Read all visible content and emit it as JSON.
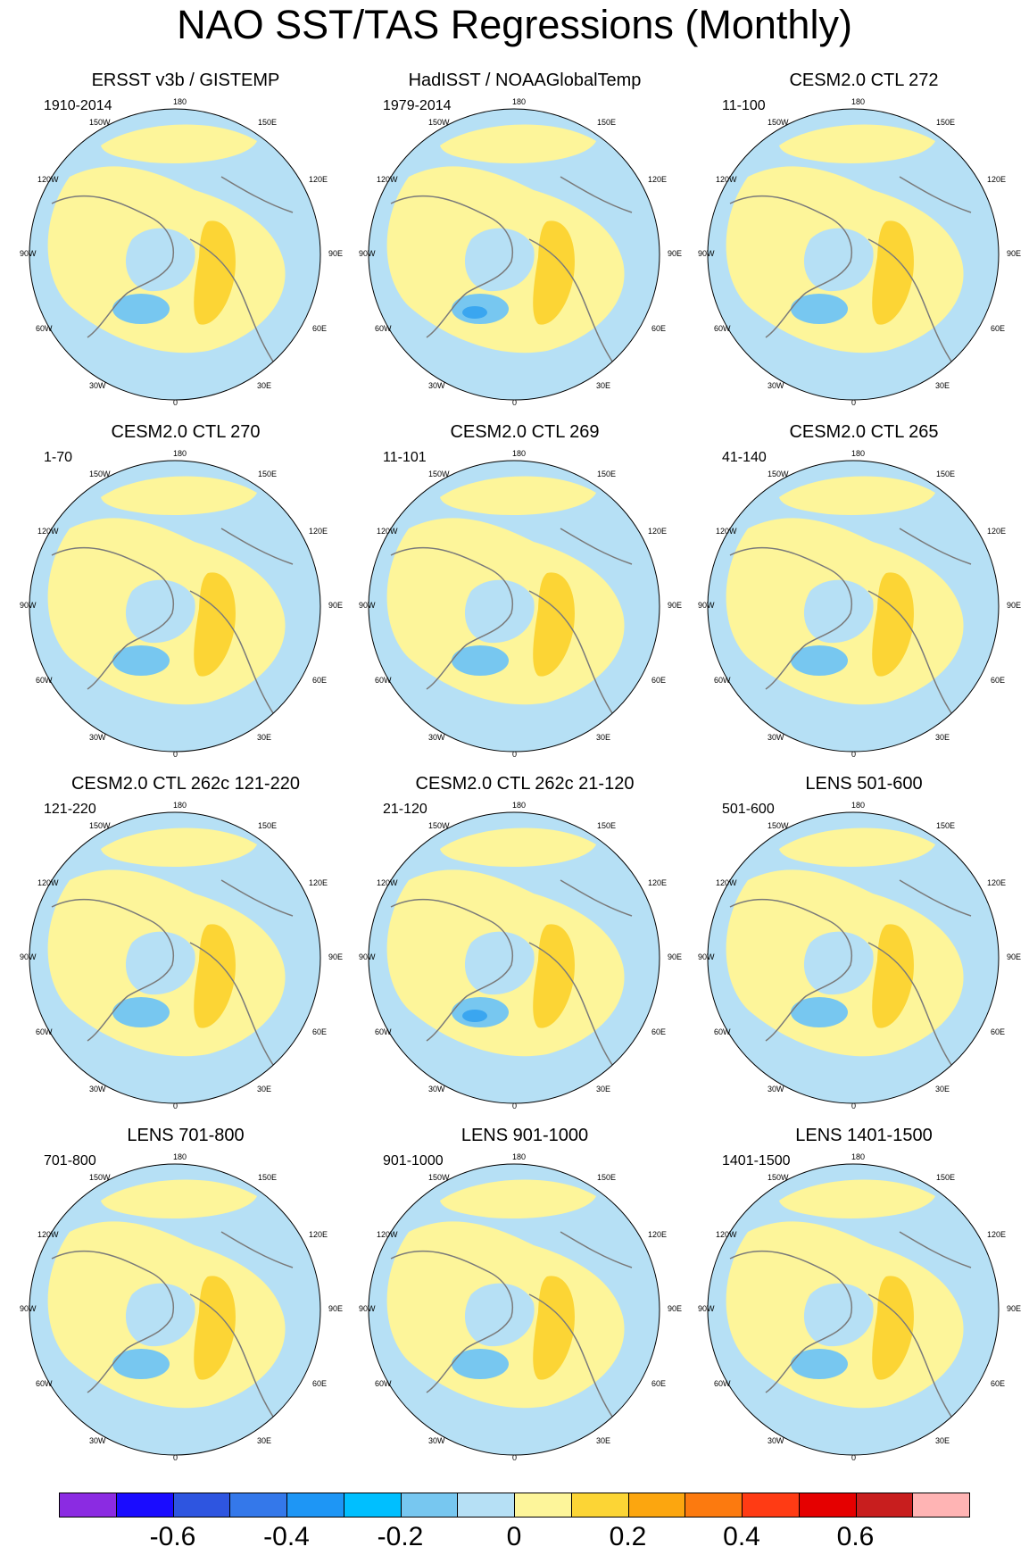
{
  "title": "NAO SST/TAS Regressions (Monthly)",
  "longitude_labels": {
    "top": "180",
    "bottom": "0",
    "lon150w": "150W",
    "lon150e": "150E",
    "lon120w": "120W",
    "lon120e": "120E",
    "lon90w": "90W",
    "lon90e": "90E",
    "lon60w": "60W",
    "lon60e": "60E",
    "lon30w": "30W",
    "lon30e": "30E"
  },
  "panels": [
    {
      "title": "ERSST v3b / GISTEMP",
      "period": "1910-2014"
    },
    {
      "title": "HadISST / NOAAGlobalTemp",
      "period": "1979-2014"
    },
    {
      "title": "CESM2.0 CTL 272",
      "period": "11-100"
    },
    {
      "title": "CESM2.0 CTL 270",
      "period": "1-70"
    },
    {
      "title": "CESM2.0 CTL 269",
      "period": "11-101"
    },
    {
      "title": "CESM2.0 CTL 265",
      "period": "41-140"
    },
    {
      "title": "CESM2.0 CTL 262c 121-220",
      "period": "121-220"
    },
    {
      "title": "CESM2.0 CTL 262c 21-120",
      "period": "21-120"
    },
    {
      "title": "LENS 501-600",
      "period": "501-600"
    },
    {
      "title": "LENS 701-800",
      "period": "701-800"
    },
    {
      "title": "LENS 901-1000",
      "period": "901-1000"
    },
    {
      "title": "LENS 1401-1500",
      "period": "1401-1500"
    }
  ],
  "colorbar": {
    "colors": [
      "#8b2be2",
      "#1a0cff",
      "#2e55e0",
      "#3478ea",
      "#1e96f5",
      "#00bfff",
      "#77c7f0",
      "#b6e0f5",
      "#fdf59a",
      "#fcd535",
      "#fca60f",
      "#fc7a0f",
      "#ff3b14",
      "#e50000",
      "#c81e1e",
      "#ffb4b4"
    ],
    "labels": [
      "-0.6",
      "-0.4",
      "-0.2",
      "0",
      "0.2",
      "0.4",
      "0.6"
    ]
  },
  "map_colors": {
    "neutral_positive": "#fdf59a",
    "neutral_negative": "#b6e0f5",
    "moderate_positive": "#fcd535",
    "moderate_negative": "#77c7f0",
    "strong_negative": "#3aa6f0",
    "land_outline": "#7a7a7a",
    "missing": "#ffffff"
  }
}
